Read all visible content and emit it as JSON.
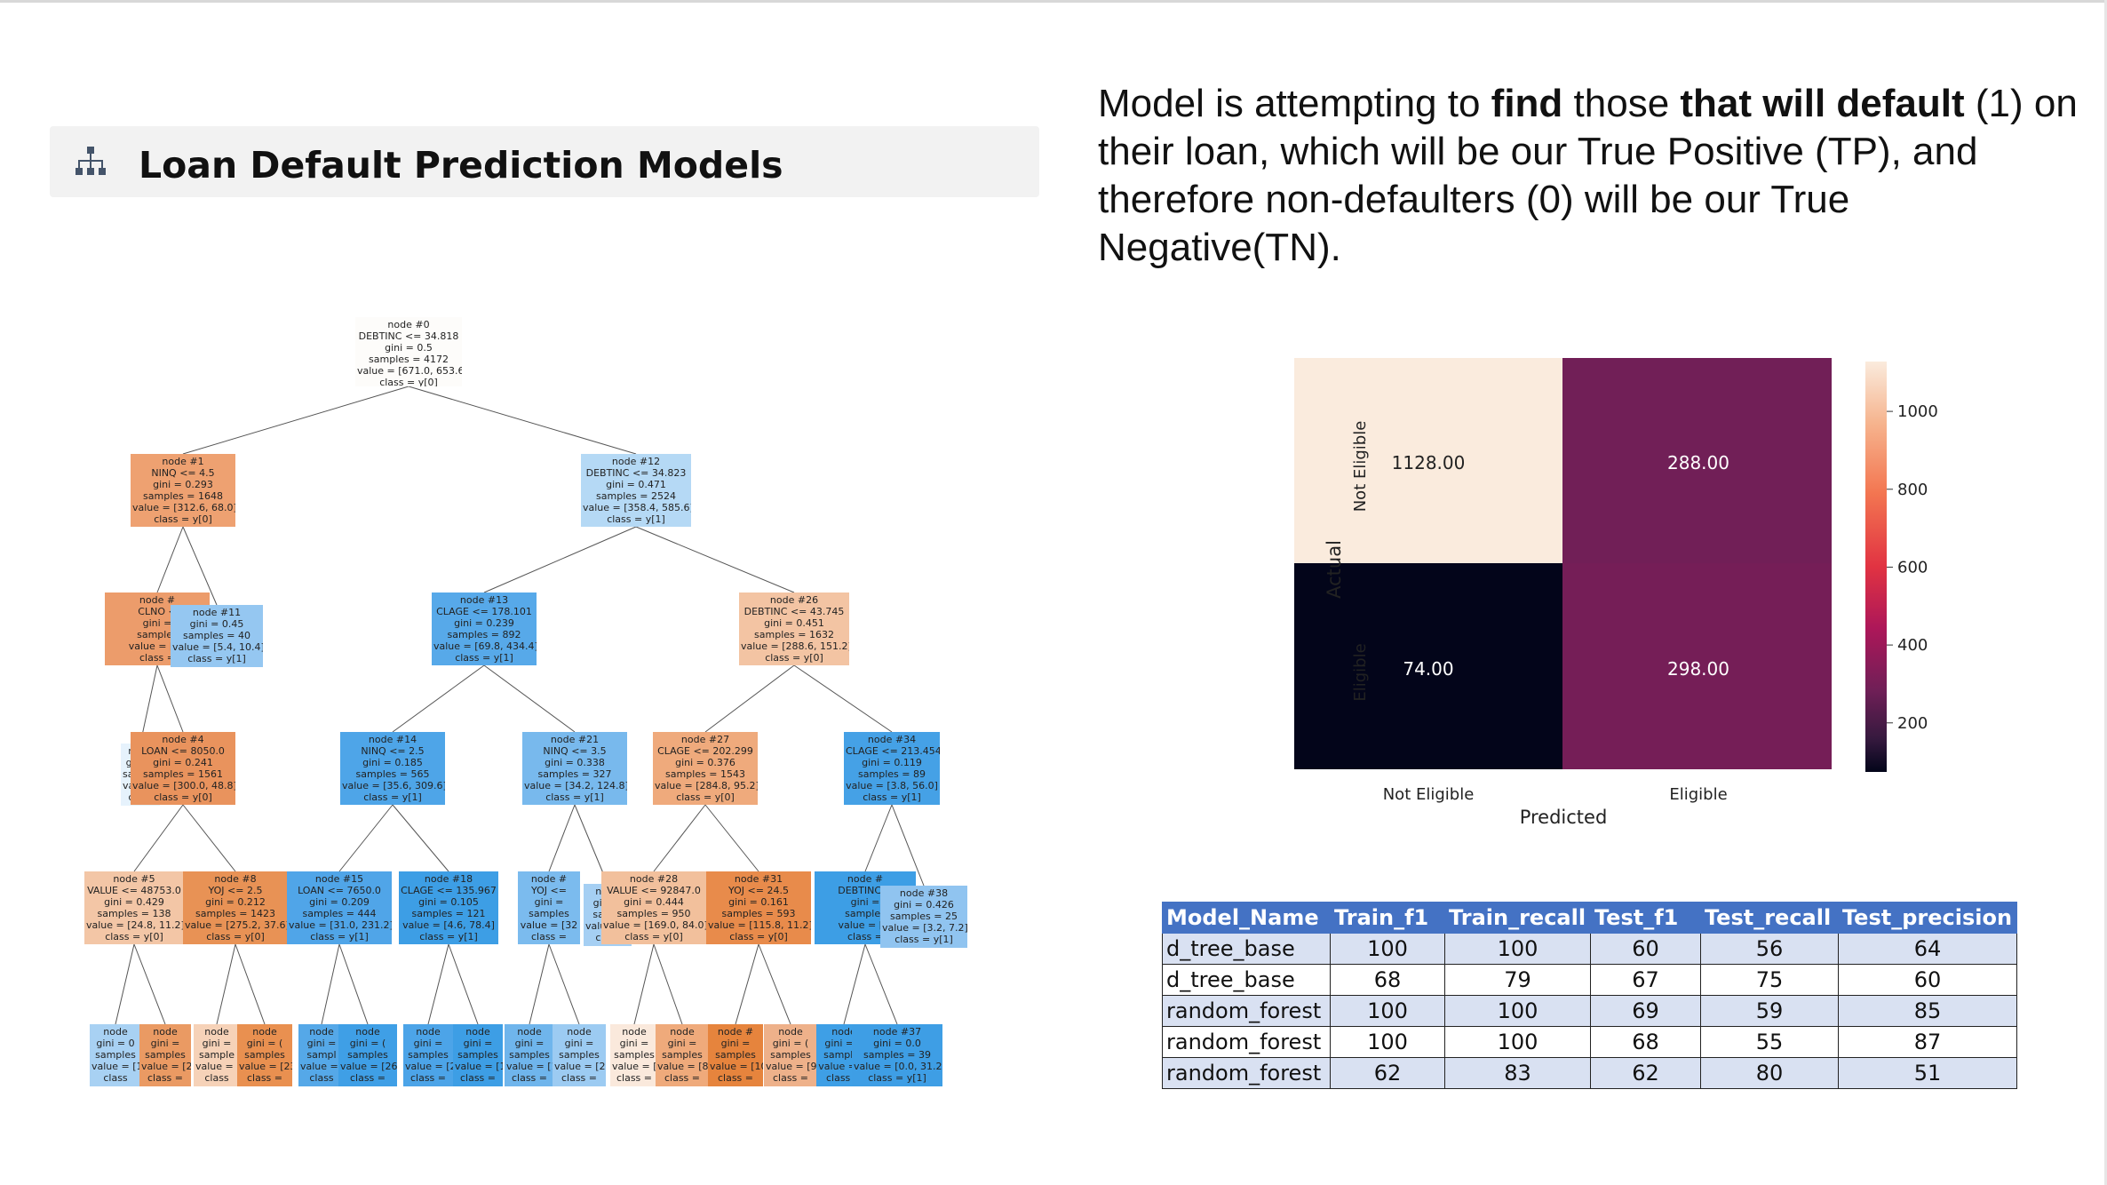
{
  "title": "Loan Default Prediction Models",
  "description": {
    "p1": "Model is attempting to ",
    "b1": "find",
    "p2": " those ",
    "b2": "that will default",
    "p3": " (1) on their loan, which will be our True Positive (TP), and therefore non-defaulters (0) will be our True Negative(TN)."
  },
  "tree": {
    "nodes": [
      {
        "lines": [
          "node #0",
          "DEBTINC <= 34.818",
          "gini = 0.5",
          "samples = 4172",
          "value = [671.0, 653.6]",
          "class = y[0]"
        ]
      },
      {
        "lines": [
          "node #1",
          "NINQ <= 4.5",
          "gini = 0.293",
          "samples = 1648",
          "value = [312.6, 68.0]",
          "class = y[0]"
        ]
      },
      {
        "lines": [
          "node #12",
          "DEBTINC <= 34.823",
          "gini = 0.471",
          "samples = 2524",
          "value = [358.4, 585.6]",
          "class = y[1]"
        ]
      },
      {
        "lines": [
          "node #",
          "CLNO <",
          "gini =",
          "samples",
          "value = [30",
          "class ="
        ]
      },
      {
        "lines": [
          "node #11",
          "gini = 0.45",
          "samples = 40",
          "value = [5.4, 10.4]",
          "class = y[1]"
        ]
      },
      {
        "lines": [
          "node #13",
          "CLAGE <= 178.101",
          "gini = 0.239",
          "samples = 892",
          "value = [69.8, 434.4]",
          "class = y[1]"
        ]
      },
      {
        "lines": [
          "node #26",
          "DEBTINC <= 43.745",
          "gini = 0.451",
          "samples = 1632",
          "value = [288.6, 151.2]",
          "class = y[0]"
        ]
      },
      {
        "lines": [
          "node",
          "gini =",
          "sample",
          "value =",
          "class"
        ]
      },
      {
        "lines": [
          "node #4",
          "LOAN <= 8050.0",
          "gini = 0.241",
          "samples = 1561",
          "value = [300.0, 48.8]",
          "class = y[0]"
        ]
      },
      {
        "lines": [
          "node #14",
          "NINQ <= 2.5",
          "gini = 0.185",
          "samples = 565",
          "value = [35.6, 309.6]",
          "class = y[1]"
        ]
      },
      {
        "lines": [
          "node #21",
          "NINQ <= 3.5",
          "gini = 0.338",
          "samples = 327",
          "value = [34.2, 124.8]",
          "class = y[1]"
        ]
      },
      {
        "lines": [
          "node #27",
          "CLAGE <= 202.299",
          "gini = 0.376",
          "samples = 1543",
          "value = [284.8, 95.2]",
          "class = y[0]"
        ]
      },
      {
        "lines": [
          "node #34",
          "CLAGE <= 213.454",
          "gini = 0.119",
          "samples = 89",
          "value = [3.8, 56.0]",
          "class = y[1]"
        ]
      },
      {
        "lines": [
          "node #5",
          "VALUE <= 48753.0",
          "gini = 0.429",
          "samples = 138",
          "value = [24.8, 11.2]",
          "class = y[0]"
        ]
      },
      {
        "lines": [
          "node #8",
          "YOJ <= 2.5",
          "gini = 0.212",
          "samples = 1423",
          "value = [275.2, 37.6]",
          "class = y[0]"
        ]
      },
      {
        "lines": [
          "node #15",
          "LOAN <= 7650.0",
          "gini = 0.209",
          "samples = 444",
          "value = [31.0, 231.2]",
          "class = y[1]"
        ]
      },
      {
        "lines": [
          "node #18",
          "CLAGE <= 135.967",
          "gini = 0.105",
          "samples = 121",
          "value = [4.6, 78.4]",
          "class = y[1]"
        ]
      },
      {
        "lines": [
          "node #",
          "YOJ <=",
          "gini =",
          "samples",
          "value = [32",
          "class ="
        ]
      },
      {
        "lines": [
          "node",
          "gini =",
          "sampl",
          "value = [",
          "class"
        ]
      },
      {
        "lines": [
          "node #28",
          "VALUE <= 92847.0",
          "gini = 0.444",
          "samples = 950",
          "value = [169.0, 84.0]",
          "class = y[0]"
        ]
      },
      {
        "lines": [
          "node #31",
          "YOJ <= 24.5",
          "gini = 0.161",
          "samples = 593",
          "value = [115.8, 11.2]",
          "class = y[0]"
        ]
      },
      {
        "lines": [
          "node #",
          "DEBTINC <",
          "gini =",
          "samples",
          "value = [0.",
          "class ="
        ]
      },
      {
        "lines": [
          "node #38",
          "gini = 0.426",
          "samples = 25",
          "value = [3.2, 7.2]",
          "class = y[1]"
        ]
      },
      {
        "lines": [
          "node",
          "gini = 0",
          "samples",
          "value = [1",
          "class"
        ]
      },
      {
        "lines": [
          "node",
          "gini =",
          "samples",
          "value = [2",
          "class ="
        ]
      },
      {
        "lines": [
          "node",
          "gini =",
          "sample",
          "value = [4",
          "class"
        ]
      },
      {
        "lines": [
          "node",
          "gini = (",
          "samples",
          "value = [23",
          "class ="
        ]
      },
      {
        "lines": [
          "node",
          "gini =",
          "sampl",
          "value = [",
          "class"
        ]
      },
      {
        "lines": [
          "node",
          "gini = (",
          "samples",
          "value = [26",
          "class ="
        ]
      },
      {
        "lines": [
          "node",
          "gini =",
          "samples",
          "value = [2",
          "class ="
        ]
      },
      {
        "lines": [
          "node",
          "gini =",
          "samples",
          "value = [1",
          "class ="
        ]
      },
      {
        "lines": [
          "node",
          "gini =",
          "samples",
          "value = [1",
          "class ="
        ]
      },
      {
        "lines": [
          "node",
          "gini =",
          "samples",
          "value = [2",
          "class ="
        ]
      },
      {
        "lines": [
          "node",
          "gini =",
          "samples",
          "value = [8",
          "class ="
        ]
      },
      {
        "lines": [
          "node",
          "gini =",
          "samples",
          "value = [8",
          "class ="
        ]
      },
      {
        "lines": [
          "node #",
          "gini =",
          "samples",
          "value = [10",
          "class ="
        ]
      },
      {
        "lines": [
          "node",
          "gini = (",
          "samples",
          "value = [9",
          "class ="
        ]
      },
      {
        "lines": [
          "node",
          "gini = 0",
          "samples",
          "value = [0",
          "class ="
        ]
      },
      {
        "lines": [
          "node #37",
          "gini = 0.0",
          "samples = 39",
          "value = [0.0, 31.2]",
          "class = y[1]"
        ]
      }
    ]
  },
  "confusion_matrix": {
    "xlabel": "Predicted",
    "ylabel": "Actual",
    "x_ticks": [
      "Not Eligible",
      "Eligible"
    ],
    "y_ticks": [
      "Not Eligible",
      "Eligible"
    ],
    "cells": [
      [
        "1128.00",
        "288.00"
      ],
      [
        "74.00",
        "298.00"
      ]
    ],
    "colorbar_ticks": [
      "1000",
      "800",
      "600",
      "400",
      "200"
    ]
  },
  "chart_data": {
    "type": "heatmap",
    "x": [
      "Not Eligible",
      "Eligible"
    ],
    "y": [
      "Not Eligible",
      "Eligible"
    ],
    "values": [
      [
        1128,
        288
      ],
      [
        74,
        298
      ]
    ],
    "xlabel": "Predicted",
    "ylabel": "Actual",
    "colorbar_range": [
      74,
      1128
    ],
    "colorbar_ticks": [
      200,
      400,
      600,
      800,
      1000
    ]
  },
  "metrics_table": {
    "headers": [
      "Model_Name",
      "Train_f1",
      "Train_recall",
      "Test_f1",
      "Test_recall",
      "Test_precision"
    ],
    "rows": [
      [
        "d_tree_base",
        "100",
        "100",
        "60",
        "56",
        "64"
      ],
      [
        "d_tree_base",
        "68",
        "79",
        "67",
        "75",
        "60"
      ],
      [
        "random_forest",
        "100",
        "100",
        "69",
        "59",
        "85"
      ],
      [
        "random_forest",
        "100",
        "100",
        "68",
        "55",
        "87"
      ],
      [
        "random_forest",
        "62",
        "83",
        "62",
        "80",
        "51"
      ]
    ]
  }
}
